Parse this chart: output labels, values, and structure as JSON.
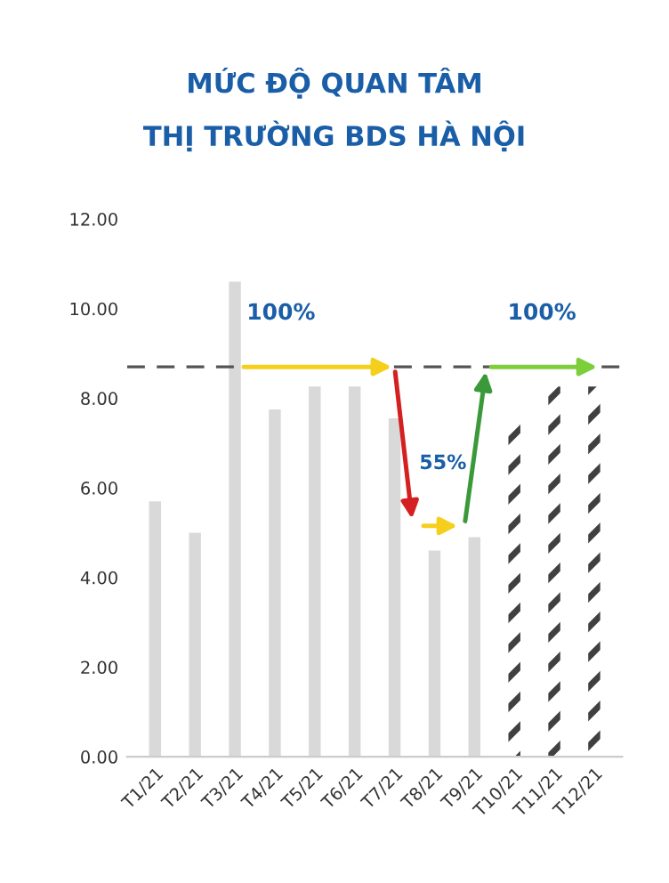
{
  "chart_data": {
    "type": "bar",
    "title": "MỨC ĐỘ QUAN TÂM",
    "subtitle": "THỊ TRƯỜNG BDS HÀ NỘI",
    "categories": [
      "T1/21",
      "T2/21",
      "T3/21",
      "T4/21",
      "T5/21",
      "T6/21",
      "T7/21",
      "T8/21",
      "T9/21",
      "T10/21",
      "T11/21",
      "T12/21"
    ],
    "series": [
      {
        "color": "#d9d9d9",
        "values": [
          5.7,
          5.0,
          10.6,
          7.75,
          8.26,
          8.26,
          7.55,
          4.6,
          4.9,
          null,
          null,
          null
        ]
      },
      {
        "color": "#404040",
        "line_style": "dashed",
        "values": [
          null,
          null,
          null,
          null,
          null,
          null,
          null,
          null,
          null,
          7.6,
          8.26,
          8.26
        ]
      }
    ],
    "ylim": [
      0,
      12
    ],
    "yticks": [
      {
        "value": 0,
        "label": "0.00"
      },
      {
        "value": 2,
        "label": "2.00"
      },
      {
        "value": 4,
        "label": "4.00"
      },
      {
        "value": 6,
        "label": "6.00"
      },
      {
        "value": 8,
        "label": "8.00"
      },
      {
        "value": 10,
        "label": "10.00"
      },
      {
        "value": 12,
        "label": "12.00"
      }
    ],
    "grid": false,
    "legend": false,
    "ref_lines": [
      {
        "axis": "y",
        "value": 8.7,
        "color": "#555555",
        "line_style": "dashed",
        "label": null
      }
    ],
    "annotations": [
      "100%",
      "55%",
      "100%"
    ]
  }
}
